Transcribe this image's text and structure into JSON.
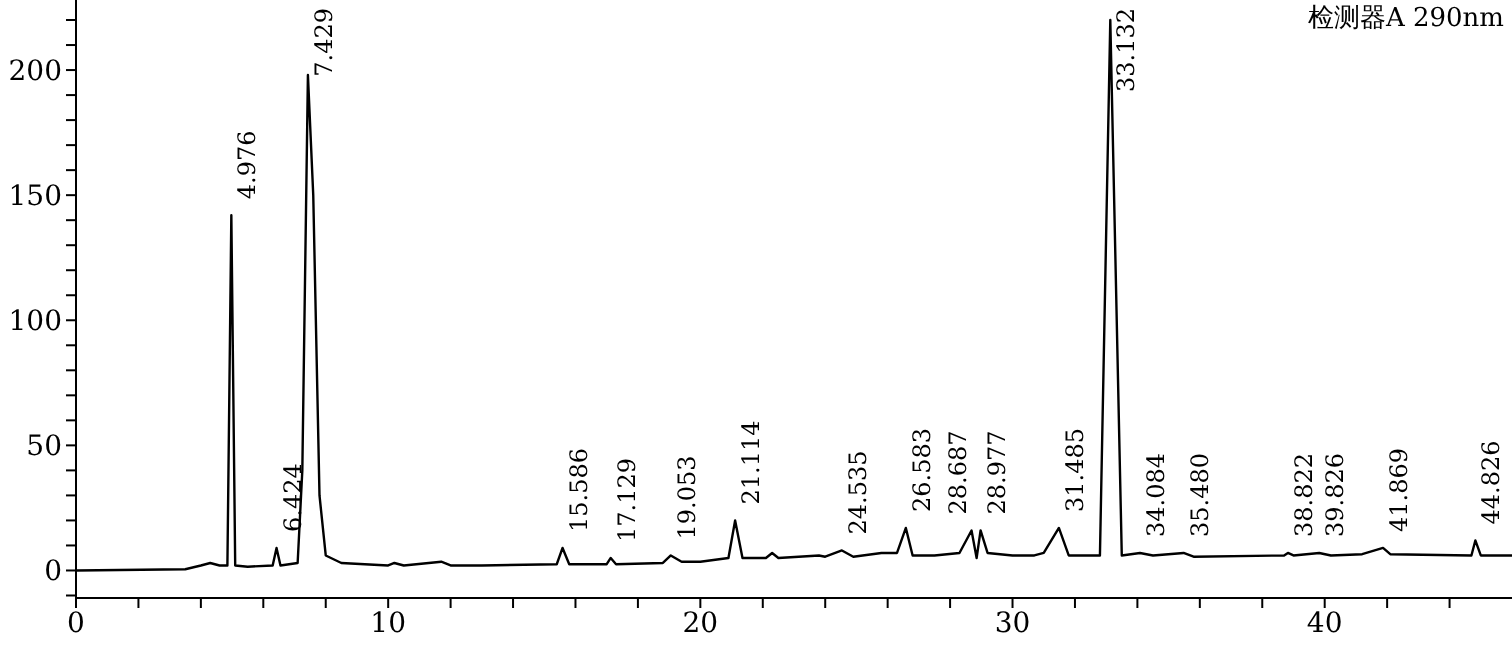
{
  "chart_data": {
    "type": "line",
    "title": "检测器A 290nm",
    "x": [
      0,
      3.5,
      4.0,
      4.3,
      4.6,
      4.85,
      4.976,
      5.1,
      5.5,
      6.3,
      6.424,
      6.55,
      7.1,
      7.25,
      7.429,
      7.6,
      7.8,
      8.0,
      8.5,
      10,
      10.2,
      10.5,
      11.7,
      12,
      13,
      15.4,
      15.586,
      15.8,
      17.0,
      17.129,
      17.3,
      18.8,
      19.053,
      19.4,
      20,
      20.9,
      21.114,
      21.35,
      22.1,
      22.3,
      22.5,
      23.8,
      24.0,
      24.535,
      24.9,
      25.8,
      26.3,
      26.583,
      26.8,
      27.5,
      28.3,
      28.687,
      28.85,
      28.977,
      29.2,
      30,
      30.7,
      31.0,
      31.485,
      31.8,
      32.8,
      33.132,
      33.5,
      34.084,
      34.5,
      35.48,
      35.8,
      38.7,
      38.822,
      39.0,
      39.826,
      40.2,
      41.2,
      41.869,
      42.1,
      44.7,
      44.826,
      45,
      46
    ],
    "series": [
      {
        "color": "#000000",
        "values": [
          0,
          0.5,
          2,
          3,
          2,
          2,
          142,
          2,
          1.5,
          2,
          9,
          2,
          3,
          40,
          198,
          150,
          30,
          6,
          3,
          2,
          3,
          2,
          3.5,
          2,
          2,
          2.5,
          9,
          2.5,
          2.5,
          5,
          2.5,
          3,
          6,
          3.5,
          3.5,
          5,
          20,
          5,
          5,
          7,
          5,
          6,
          5.5,
          8,
          5.5,
          7,
          7,
          17,
          6,
          6,
          7,
          16,
          5,
          16,
          7,
          6,
          6,
          7,
          17,
          6,
          6,
          220,
          6,
          7,
          6,
          7,
          5.5,
          6,
          7,
          6,
          7,
          6,
          6.5,
          9,
          6.5,
          6,
          12,
          6,
          6
        ]
      }
    ],
    "xlim": [
      0,
      46
    ],
    "xticks": [
      0,
      {
        "value": 2,
        "label": null
      },
      {
        "value": 4,
        "label": null
      },
      {
        "value": 6,
        "label": null
      },
      {
        "value": 8,
        "label": null
      },
      10,
      {
        "value": 12,
        "label": null
      },
      {
        "value": 14,
        "label": null
      },
      {
        "value": 16,
        "label": null
      },
      {
        "value": 18,
        "label": null
      },
      20,
      {
        "value": 22,
        "label": null
      },
      {
        "value": 24,
        "label": null
      },
      {
        "value": 26,
        "label": null
      },
      {
        "value": 28,
        "label": null
      },
      30,
      {
        "value": 32,
        "label": null
      },
      {
        "value": 34,
        "label": null
      },
      {
        "value": 36,
        "label": null
      },
      {
        "value": 38,
        "label": null
      },
      40,
      {
        "value": 42,
        "label": null
      },
      {
        "value": 44,
        "label": null
      }
    ],
    "ylim": [
      -11,
      228
    ],
    "yticks": [
      {
        "value": -10,
        "label": null
      },
      0,
      {
        "value": 10,
        "label": null
      },
      {
        "value": 20,
        "label": null
      },
      {
        "value": 30,
        "label": null
      },
      {
        "value": 40,
        "label": null
      },
      50,
      {
        "value": 60,
        "label": null
      },
      {
        "value": 70,
        "label": null
      },
      {
        "value": 80,
        "label": null
      },
      {
        "value": 90,
        "label": null
      },
      100,
      {
        "value": 110,
        "label": null
      },
      {
        "value": 120,
        "label": null
      },
      {
        "value": 130,
        "label": null
      },
      {
        "value": 140,
        "label": null
      },
      150,
      {
        "value": 160,
        "label": null
      },
      {
        "value": 170,
        "label": null
      },
      {
        "value": 180,
        "label": null
      },
      {
        "value": 190,
        "label": null
      },
      200,
      {
        "value": 210,
        "label": null
      },
      {
        "value": 220,
        "label": null
      }
    ],
    "grid": false,
    "legend": false,
    "marker": "none",
    "line_style": "solid",
    "annotations": [
      {
        "text": "4.976",
        "x": 4.976,
        "y": 142
      },
      {
        "text": "6.424",
        "x": 6.424,
        "y": 9
      },
      {
        "text": "7.429",
        "x": 7.429,
        "y": 198
      },
      {
        "text": "15.586",
        "x": 15.586,
        "y": 9
      },
      {
        "text": "17.129",
        "x": 17.129,
        "y": 5
      },
      {
        "text": "19.053",
        "x": 19.053,
        "y": 6
      },
      {
        "text": "21.114",
        "x": 21.114,
        "y": 20
      },
      {
        "text": "24.535",
        "x": 24.535,
        "y": 8
      },
      {
        "text": "26.583",
        "x": 26.583,
        "y": 17
      },
      {
        "text": "28.687",
        "x": 28.687,
        "y": 16
      },
      {
        "text": "28.977",
        "x": 28.977,
        "y": 16
      },
      {
        "text": "31.485",
        "x": 31.485,
        "y": 17
      },
      {
        "text": "33.132",
        "x": 33.132,
        "y": 220
      },
      {
        "text": "34.084",
        "x": 34.084,
        "y": 7
      },
      {
        "text": "35.480",
        "x": 35.48,
        "y": 7
      },
      {
        "text": "38.822",
        "x": 38.822,
        "y": 7
      },
      {
        "text": "39.826",
        "x": 39.826,
        "y": 7
      },
      {
        "text": "41.869",
        "x": 41.869,
        "y": 9
      },
      {
        "text": "44.826",
        "x": 44.826,
        "y": 12
      }
    ]
  }
}
